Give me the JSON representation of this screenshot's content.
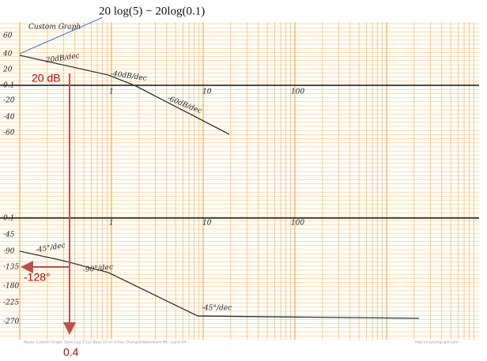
{
  "formula": "20 log(5) − 20log(0.1)",
  "paper_title": "Custom Graph",
  "magnitude_axis": {
    "labels": [
      "60",
      "40",
      "20",
      "0.1",
      "-20",
      "-40",
      "-60"
    ],
    "decades": [
      "1",
      "10",
      "100"
    ]
  },
  "phase_axis": {
    "labels": [
      "0.1",
      "-45",
      "-90",
      "-135",
      "-180",
      "-225",
      "-270"
    ],
    "decades": [
      "1",
      "10",
      "100"
    ]
  },
  "magnitude_slopes": [
    "-20dB/dec",
    "-40dB/dec",
    "-60dB/dec"
  ],
  "phase_slopes": [
    "-45°/dec",
    "-90°/dec",
    "-45°/dec"
  ],
  "callouts": {
    "gain": "20 dB",
    "phase": "-128°",
    "frequency": "0.4"
  },
  "footer": {
    "left": "Mystic Custom Graph: Semi-Log 5 Cyc Base 10 on X-Axis Orange&Watermark ME - Land A4",
    "right": "http://customgraph.com"
  }
}
